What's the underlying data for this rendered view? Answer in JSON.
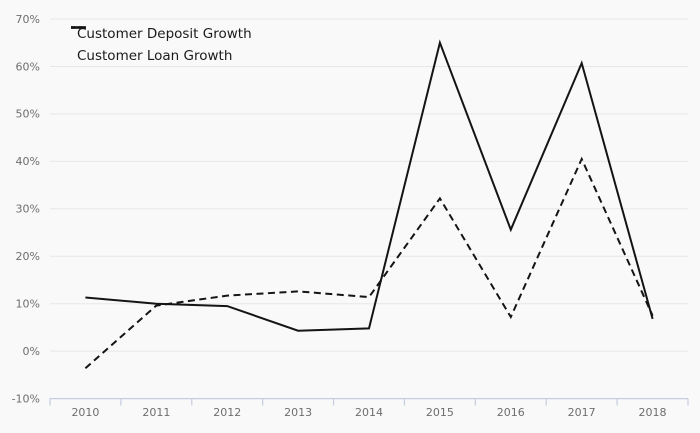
{
  "chart_data": {
    "type": "line",
    "categories": [
      "2010",
      "2011",
      "2012",
      "2013",
      "2014",
      "2015",
      "2016",
      "2017",
      "2018"
    ],
    "series": [
      {
        "name": "Customer Deposit Growth",
        "style": "solid",
        "values": [
          11.3,
          10.0,
          9.5,
          4.3,
          4.8,
          65.0,
          25.6,
          60.7,
          6.8
        ]
      },
      {
        "name": "Customer Loan Growth",
        "style": "dashed",
        "values": [
          -3.6,
          9.6,
          11.7,
          12.6,
          11.4,
          32.2,
          7.2,
          40.5,
          7.5
        ]
      }
    ],
    "title": "",
    "xlabel": "",
    "ylabel": "",
    "ylim": [
      -10,
      70
    ],
    "y_ticks": [
      70,
      60,
      50,
      40,
      30,
      20,
      10,
      0,
      -10
    ],
    "y_tick_labels": [
      "70%",
      "60%",
      "50%",
      "40%",
      "30%",
      "20%",
      "10%",
      "0%",
      "-10%"
    ],
    "grid": true,
    "legend_position": "top-left"
  },
  "colors": {
    "background": "#f9f9f9",
    "gridline": "#e7e7e7",
    "axis": "#c6cde0",
    "tick_text": "#6e6e6e",
    "line": "#141414",
    "legend_text": "#1a1a1a"
  }
}
